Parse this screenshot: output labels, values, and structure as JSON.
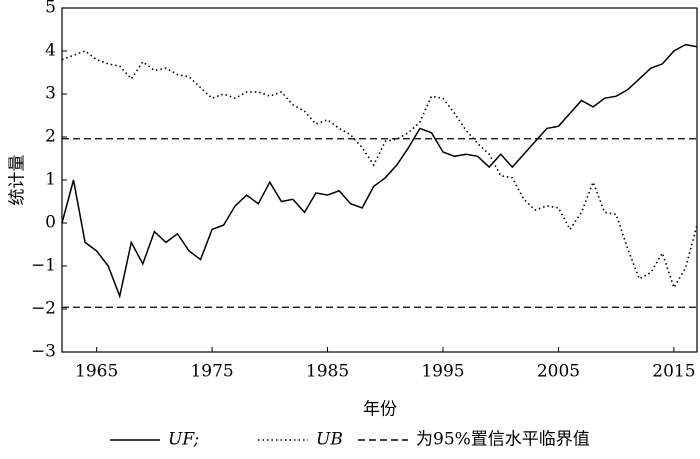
{
  "chart_data": {
    "type": "line",
    "x_label": "年份",
    "y_label": "统计量",
    "x": [
      1962,
      1963,
      1964,
      1965,
      1966,
      1967,
      1968,
      1969,
      1970,
      1971,
      1972,
      1973,
      1974,
      1975,
      1976,
      1977,
      1978,
      1979,
      1980,
      1981,
      1982,
      1983,
      1984,
      1985,
      1986,
      1987,
      1988,
      1989,
      1990,
      1991,
      1992,
      1993,
      1994,
      1995,
      1996,
      1997,
      1998,
      1999,
      2000,
      2001,
      2002,
      2003,
      2004,
      2005,
      2006,
      2007,
      2008,
      2009,
      2010,
      2011,
      2012,
      2013,
      2014,
      2015,
      2016,
      2017
    ],
    "series": [
      {
        "name": "UF;",
        "color": "#000000",
        "dash": "solid",
        "values": [
          0,
          1.0,
          -0.45,
          -0.65,
          -1.0,
          -1.7,
          -0.45,
          -0.95,
          -0.2,
          -0.45,
          -0.25,
          -0.65,
          -0.85,
          -0.15,
          -0.05,
          0.4,
          0.65,
          0.45,
          0.95,
          0.5,
          0.55,
          0.25,
          0.7,
          0.65,
          0.75,
          0.45,
          0.35,
          0.85,
          1.05,
          1.35,
          1.75,
          2.2,
          2.1,
          1.65,
          1.55,
          1.6,
          1.55,
          1.3,
          1.6,
          1.3,
          1.6,
          1.9,
          2.2,
          2.25,
          2.55,
          2.85,
          2.7,
          2.9,
          2.95,
          3.1,
          3.35,
          3.6,
          3.7,
          4.0,
          4.15,
          4.1
        ]
      },
      {
        "name": "UB",
        "color": "#000000",
        "dash": "dotted",
        "values": [
          3.8,
          3.9,
          4.0,
          3.8,
          3.7,
          3.65,
          3.35,
          3.75,
          3.55,
          3.6,
          3.45,
          3.4,
          3.15,
          2.9,
          3.0,
          2.9,
          3.05,
          3.05,
          2.95,
          3.05,
          2.75,
          2.6,
          2.3,
          2.4,
          2.2,
          2.05,
          1.75,
          1.35,
          1.9,
          1.95,
          2.1,
          2.35,
          2.95,
          2.9,
          2.55,
          2.15,
          1.85,
          1.6,
          1.1,
          1.05,
          0.55,
          0.3,
          0.4,
          0.35,
          -0.15,
          0.25,
          0.95,
          0.25,
          0.2,
          -0.6,
          -1.3,
          -1.15,
          -0.7,
          -1.5,
          -1.05,
          -0.05
        ]
      }
    ],
    "reference_lines": {
      "name": "为95%置信水平临界值",
      "color": "#000000",
      "dash": "dashed",
      "values": [
        1.96,
        -1.96
      ]
    },
    "xlim": [
      1962,
      2017
    ],
    "xticks": [
      1965,
      1975,
      1985,
      1995,
      2005,
      2015
    ],
    "ylim": [
      -3,
      5
    ],
    "yticks": [
      {
        "value": -3,
        "label": "−3"
      },
      {
        "value": -2,
        "label": "−2"
      },
      {
        "value": -1,
        "label": "−1"
      },
      0,
      1,
      2,
      3,
      4,
      5
    ],
    "legend": "bottom"
  }
}
